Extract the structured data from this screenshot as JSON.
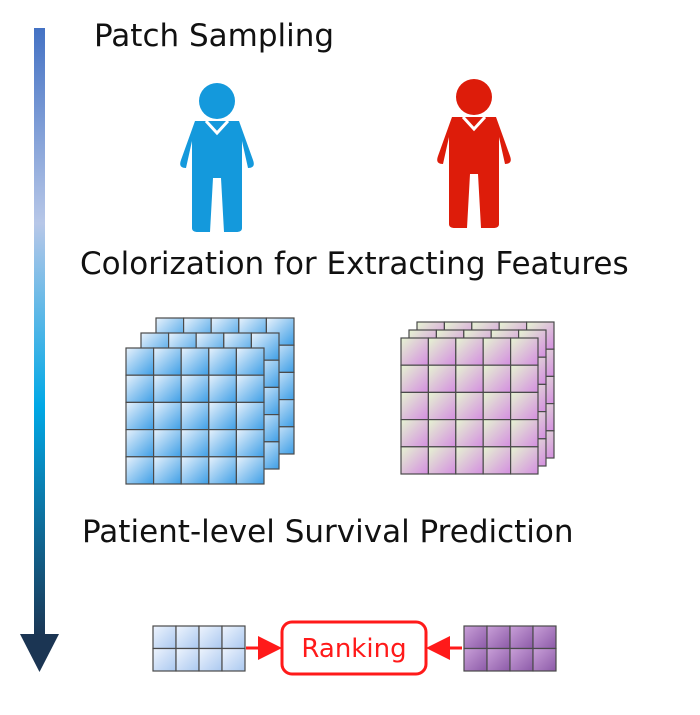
{
  "steps": {
    "patch_sampling": "Patch Sampling",
    "colorization": "Colorization for Extracting Features",
    "survival_prediction": "Patient-level Survival Prediction"
  },
  "ranking_label": "Ranking",
  "colors": {
    "arrow_top": "#4472c4",
    "arrow_mid": "#00a8e6",
    "arrow_bottom": "#1b3553",
    "patient_blue": "#1499dc",
    "patient_red": "#dd1c0a",
    "ranking_red": "#ff1a1a",
    "grid_line": "#4a4a4a"
  },
  "icons": {
    "patient_left": "person-icon",
    "patient_right": "person-icon"
  }
}
